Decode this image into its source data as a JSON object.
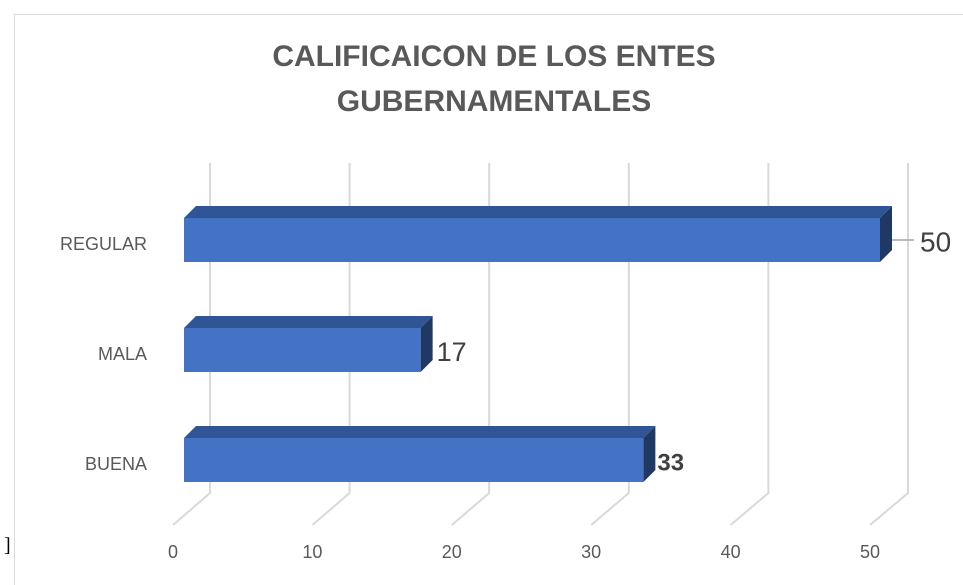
{
  "chart_data": {
    "type": "bar3d_horizontal",
    "title": [
      "CALIFICAICON DE LOS ENTES",
      "GUBERNAMENTALES"
    ],
    "categories": [
      "BUENA",
      "MALA",
      "REGULAR"
    ],
    "values": [
      33,
      17,
      50
    ],
    "color": "#4472c4",
    "xlim": [
      0,
      50
    ],
    "xticks": [
      0,
      10,
      20,
      30,
      40,
      50
    ],
    "grid": true,
    "annotation": "]"
  }
}
